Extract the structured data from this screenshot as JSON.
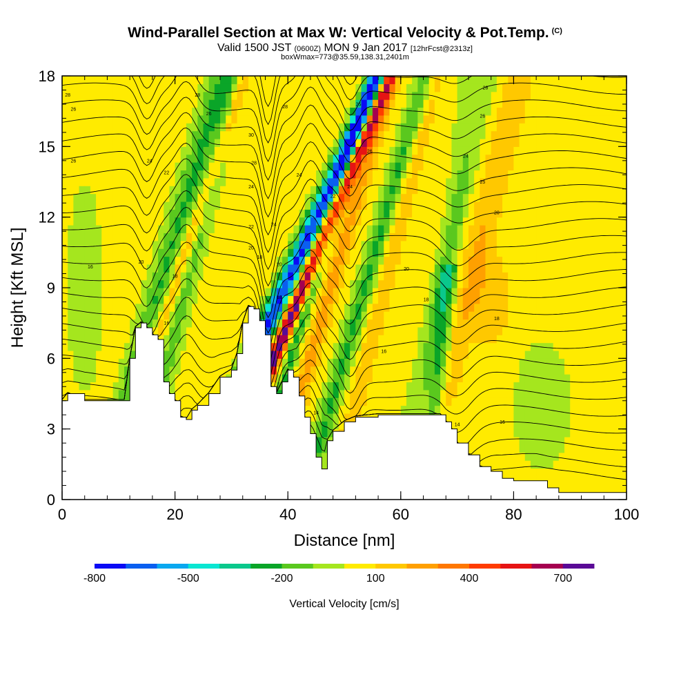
{
  "chart_data": {
    "type": "heatmap",
    "title": "Wind-Parallel Section at Max W: Vertical Velocity & Pot.Temp.",
    "copyright": "(C)",
    "subtitle_main_a": "Valid 1500 JST",
    "subtitle_small_a": "(0600Z)",
    "subtitle_main_b": "MON 9 Jan 2017",
    "subtitle_small_b": "[12hrFcst@2313z]",
    "subtitle2": "boxWmax=773@35.59,138.31,2401m",
    "xlabel": "Distance [nm]",
    "ylabel": "Height [Kft MSL]",
    "xlim": [
      0,
      100
    ],
    "ylim": [
      0,
      18
    ],
    "xticks": [
      0,
      20,
      40,
      60,
      80,
      100
    ],
    "xtick_labels": [
      "0",
      "20",
      "40",
      "60",
      "80",
      "100"
    ],
    "yticks": [
      0,
      3,
      6,
      9,
      12,
      15,
      18
    ],
    "ytick_labels": [
      "0",
      "3",
      "6",
      "9",
      "12",
      "15",
      "18"
    ],
    "colorbar": {
      "label": "Vertical Velocity [cm/s]",
      "colors": [
        "#0a0af5",
        "#0a5ff0",
        "#0aa8f0",
        "#0ae6d2",
        "#0ac88c",
        "#0aa528",
        "#5ac81e",
        "#a5e61e",
        "#ffeb00",
        "#ffc800",
        "#ffa000",
        "#ff7800",
        "#ff3c00",
        "#e61414",
        "#a50050",
        "#5a0a96"
      ],
      "tick_values": [
        -800,
        -500,
        -200,
        100,
        400,
        700
      ],
      "tick_labels": [
        "-800",
        "-500",
        "-200",
        "100",
        "400",
        "700"
      ],
      "range": [
        -800,
        800
      ]
    },
    "terrain": [
      [
        0,
        4.2
      ],
      [
        1,
        4.5
      ],
      [
        4,
        4.2
      ],
      [
        11,
        4.2
      ],
      [
        12,
        6
      ],
      [
        13,
        7.3
      ],
      [
        14,
        7.5
      ],
      [
        15,
        7.3
      ],
      [
        16,
        7
      ],
      [
        17,
        6.8
      ],
      [
        18,
        5
      ],
      [
        19,
        4.5
      ],
      [
        20,
        4.2
      ],
      [
        21,
        3.5
      ],
      [
        22,
        3.4
      ],
      [
        23,
        3.8
      ],
      [
        24,
        4
      ],
      [
        26,
        4.5
      ],
      [
        28,
        5.2
      ],
      [
        30,
        5.5
      ],
      [
        31,
        6.2
      ],
      [
        32,
        7.5
      ],
      [
        33,
        8.2
      ],
      [
        34,
        8.1
      ],
      [
        35,
        7.6
      ],
      [
        36,
        7
      ],
      [
        37,
        4.8
      ],
      [
        38,
        4.5
      ],
      [
        39,
        5
      ],
      [
        40,
        5.5
      ],
      [
        41,
        5.2
      ],
      [
        42,
        4.4
      ],
      [
        43,
        3.5
      ],
      [
        44,
        2.8
      ],
      [
        45,
        1.8
      ],
      [
        46,
        1.3
      ],
      [
        47,
        2.5
      ],
      [
        48,
        2.9
      ],
      [
        50,
        3.3
      ],
      [
        52,
        3.5
      ],
      [
        56,
        3.6
      ],
      [
        60,
        3.6
      ],
      [
        66,
        3.6
      ],
      [
        67,
        3.6
      ],
      [
        68,
        3.3
      ],
      [
        69,
        3
      ],
      [
        70,
        2.4
      ],
      [
        72,
        1.9
      ],
      [
        74,
        1.4
      ],
      [
        76,
        1.2
      ],
      [
        78,
        0.9
      ],
      [
        80,
        0.8
      ],
      [
        84,
        0.8
      ],
      [
        86,
        0.5
      ],
      [
        88,
        0.3
      ],
      [
        90,
        0.3
      ],
      [
        95,
        0.3
      ],
      [
        100,
        0.3
      ]
    ],
    "theta_contour_labels": [
      {
        "label": "28",
        "x": 1,
        "y": 17.2
      },
      {
        "label": "28",
        "x": 24,
        "y": 17.2
      },
      {
        "label": "26",
        "x": 26,
        "y": 16.4
      },
      {
        "label": "26",
        "x": 2,
        "y": 16.6
      },
      {
        "label": "26",
        "x": 2,
        "y": 14.4
      },
      {
        "label": "24",
        "x": 15.5,
        "y": 14.4
      },
      {
        "label": "22",
        "x": 18.5,
        "y": 13.9
      },
      {
        "label": "20",
        "x": 14,
        "y": 10.1
      },
      {
        "label": "16",
        "x": 5,
        "y": 9.9
      },
      {
        "label": "18",
        "x": 20,
        "y": 9.5
      },
      {
        "label": "16",
        "x": 18.5,
        "y": 7.5
      },
      {
        "label": "30",
        "x": 33.5,
        "y": 15.5
      },
      {
        "label": "28",
        "x": 34,
        "y": 14.3
      },
      {
        "label": "24",
        "x": 33.5,
        "y": 13.3
      },
      {
        "label": "22",
        "x": 33.5,
        "y": 11.6
      },
      {
        "label": "20",
        "x": 33.5,
        "y": 10.7
      },
      {
        "label": "18",
        "x": 35,
        "y": 10.3
      },
      {
        "label": "24",
        "x": 37.5,
        "y": 11.7
      },
      {
        "label": "20",
        "x": 38.5,
        "y": 10
      },
      {
        "label": "18",
        "x": 38.5,
        "y": 8.6
      },
      {
        "label": "28",
        "x": 39.5,
        "y": 16.7
      },
      {
        "label": "24",
        "x": 42,
        "y": 13.8
      },
      {
        "label": "22",
        "x": 48,
        "y": 12.9
      },
      {
        "label": "25",
        "x": 52.5,
        "y": 16.8
      },
      {
        "label": "26",
        "x": 54.5,
        "y": 14.8
      },
      {
        "label": "24",
        "x": 51,
        "y": 13.3
      },
      {
        "label": "20",
        "x": 61,
        "y": 9.8
      },
      {
        "label": "18",
        "x": 64.5,
        "y": 8.5
      },
      {
        "label": "16",
        "x": 57,
        "y": 6.3
      },
      {
        "label": "14",
        "x": 45,
        "y": 3.7
      },
      {
        "label": "14",
        "x": 70,
        "y": 3.2
      },
      {
        "label": "28",
        "x": 75,
        "y": 17.5
      },
      {
        "label": "26",
        "x": 74.5,
        "y": 16.3
      },
      {
        "label": "24",
        "x": 71.5,
        "y": 14.6
      },
      {
        "label": "25",
        "x": 74.5,
        "y": 13.5
      },
      {
        "label": "20",
        "x": 77,
        "y": 12.2
      },
      {
        "label": "18",
        "x": 77,
        "y": 7.7
      },
      {
        "label": "16",
        "x": 78,
        "y": 3.3
      }
    ]
  }
}
